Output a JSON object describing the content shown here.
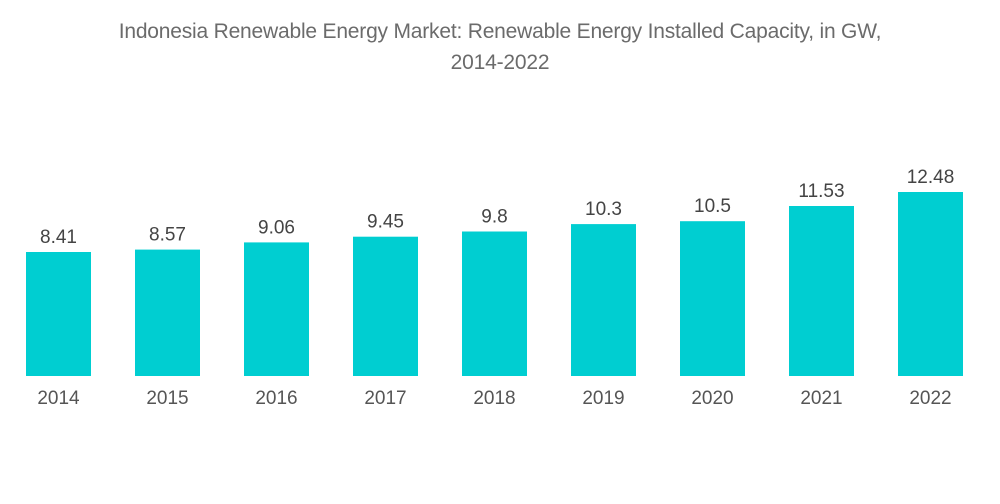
{
  "chart_data": {
    "type": "bar",
    "title": "Indonesia Renewable Energy Market: Renewable Energy Installed Capacity, in GW, 2014-2022",
    "title_lines": [
      "Indonesia Renewable Energy Market: Renewable Energy Installed Capacity, in GW,",
      "2014-2022"
    ],
    "categories": [
      "2014",
      "2015",
      "2016",
      "2017",
      "2018",
      "2019",
      "2020",
      "2021",
      "2022"
    ],
    "values": [
      8.41,
      8.57,
      9.06,
      9.45,
      9.8,
      10.3,
      10.5,
      11.53,
      12.48
    ],
    "value_labels": [
      "8.41",
      "8.57",
      "9.06",
      "9.45",
      "9.8",
      "10.3",
      "10.5",
      "11.53",
      "12.48"
    ],
    "xlabel": "",
    "ylabel": "",
    "ylim": [
      0,
      12.48
    ],
    "grid": false,
    "legend": "none",
    "bar_color": "#00ced1"
  }
}
